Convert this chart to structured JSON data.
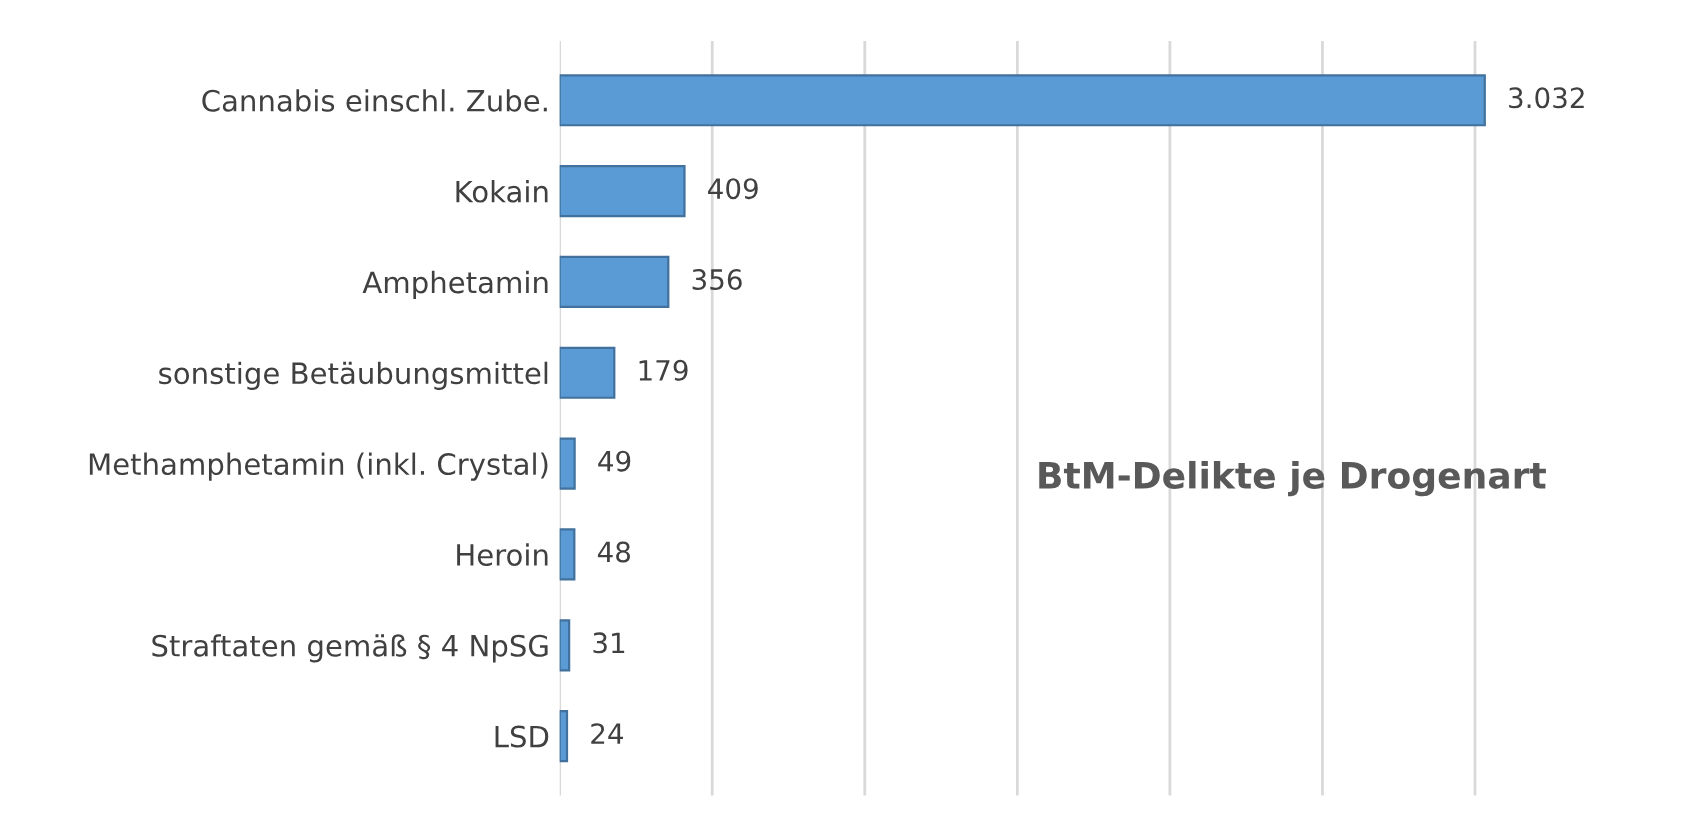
{
  "chart_data": {
    "type": "bar",
    "orientation": "horizontal",
    "title": "BtM-Delikte je Drogenart",
    "categories": [
      "Cannabis einschl. Zube.",
      "Kokain",
      "Amphetamin",
      "sonstige Betäubungsmittel",
      "Methamphetamin (inkl. Crystal)",
      "Heroin",
      "Straftaten gemäß § 4 NpSG",
      "LSD"
    ],
    "values": [
      3032,
      409,
      356,
      179,
      49,
      48,
      31,
      24
    ],
    "value_labels": [
      "3.032",
      "409",
      "356",
      "179",
      "49",
      "48",
      "31",
      "24"
    ],
    "color": "#5b9bd5",
    "xticks": [
      {
        "value": 0,
        "label": null
      },
      {
        "value": 500,
        "label": null
      },
      {
        "value": 1000,
        "label": null
      },
      {
        "value": 1500,
        "label": null
      },
      {
        "value": 2000,
        "label": null
      },
      {
        "value": 2500,
        "label": null
      },
      {
        "value": 3000,
        "label": null
      }
    ],
    "tick_labels": "y",
    "grid": "x"
  }
}
